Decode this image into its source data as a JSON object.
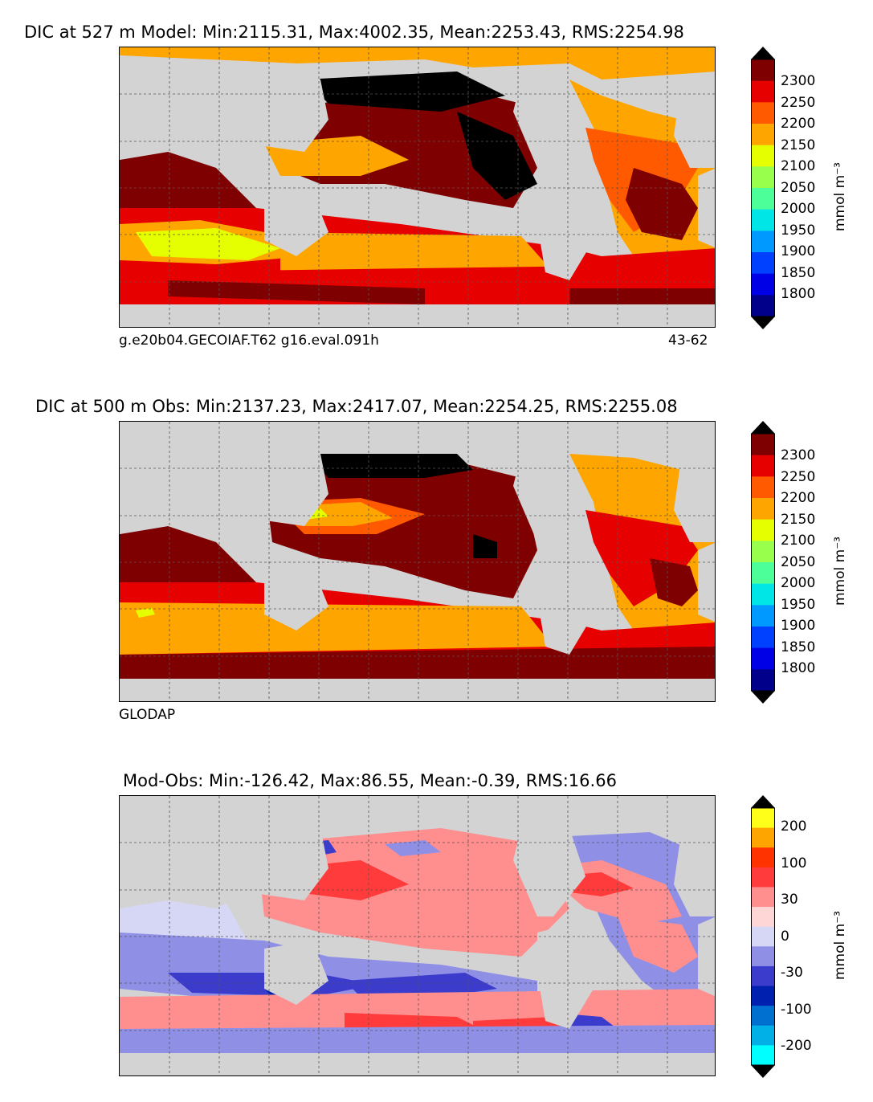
{
  "panels": [
    {
      "title": "DIC at 527 m Model: Min:2115.31, Max:4002.35, Mean:2253.43, RMS:2254.98",
      "caption_left": "g.e20b04.GECOIAF.T62 g16.eval.091h",
      "caption_right": "43-62",
      "colorbar": {
        "unit": "mmol m⁻³",
        "ticks": [
          "2300",
          "2250",
          "2200",
          "2150",
          "2100",
          "2050",
          "2000",
          "1950",
          "1900",
          "1850",
          "1800"
        ],
        "colors": [
          "#7f0000",
          "#e60000",
          "#ff5a00",
          "#ffa500",
          "#e6ff00",
          "#99ff4d",
          "#4dff99",
          "#00e6e6",
          "#0099ff",
          "#0040ff",
          "#0000e6",
          "#00008b"
        ],
        "over_color": "#000000",
        "under_color": "#000000"
      }
    },
    {
      "title": "DIC at 500 m Obs: Min:2137.23, Max:2417.07, Mean:2254.25, RMS:2255.08",
      "caption_left": "GLODAP",
      "caption_right": "",
      "colorbar": {
        "unit": "mmol m⁻³",
        "ticks": [
          "2300",
          "2250",
          "2200",
          "2150",
          "2100",
          "2050",
          "2000",
          "1950",
          "1900",
          "1850",
          "1800"
        ],
        "colors": [
          "#7f0000",
          "#e60000",
          "#ff5a00",
          "#ffa500",
          "#e6ff00",
          "#99ff4d",
          "#4dff99",
          "#00e6e6",
          "#0099ff",
          "#0040ff",
          "#0000e6",
          "#00008b"
        ],
        "over_color": "#000000",
        "under_color": "#000000"
      }
    },
    {
      "title": "Mod-Obs: Min:-126.42, Max:86.55, Mean:-0.39, RMS:16.66",
      "caption_left": "",
      "caption_right": "",
      "colorbar": {
        "unit": "mmol m⁻³",
        "ticks": [
          "200",
          "100",
          "30",
          "0",
          "-30",
          "-100",
          "-200"
        ],
        "colors": [
          "#ffff1a",
          "#ffa500",
          "#ff3300",
          "#ff3b3b",
          "#ff8f8f",
          "#ffd6d6",
          "#d6d6f5",
          "#8f8fe6",
          "#3b3bcc",
          "#0020b0",
          "#0070d0",
          "#00b0e6",
          "#00ffff"
        ],
        "over_color": "#000000",
        "under_color": "#000000"
      }
    }
  ]
}
